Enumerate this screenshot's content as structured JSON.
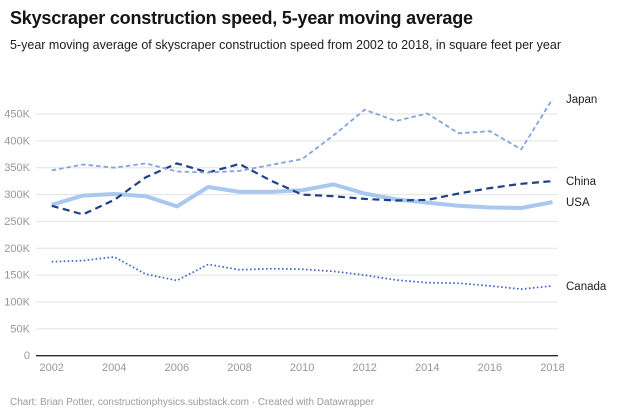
{
  "header": {
    "title": "Skyscraper construction speed, 5-year moving average",
    "subtitle": "5-year moving average of skyscraper construction speed from 2002 to 2018, in square feet per year"
  },
  "footer": {
    "text": "Chart: Brian Potter, constructionphysics.substack.com · Created with Datawrapper"
  },
  "chart_data": {
    "type": "line",
    "title": "Skyscraper construction speed, 5-year moving average",
    "subtitle": "5-year moving average of skyscraper construction speed from 2002 to 2018, in square feet per year",
    "unit": "square feet per year",
    "x": [
      2002,
      2003,
      2004,
      2005,
      2006,
      2007,
      2008,
      2009,
      2010,
      2011,
      2012,
      2013,
      2014,
      2015,
      2016,
      2017,
      2018
    ],
    "x_ticks": [
      "2002",
      "2004",
      "2006",
      "2008",
      "2010",
      "2012",
      "2014",
      "2016",
      "2018"
    ],
    "y_ticks": [
      {
        "value": 0,
        "label": "0"
      },
      {
        "value": 50000,
        "label": "50K"
      },
      {
        "value": 100000,
        "label": "100K"
      },
      {
        "value": 150000,
        "label": "150K"
      },
      {
        "value": 200000,
        "label": "200K"
      },
      {
        "value": 250000,
        "label": "250K"
      },
      {
        "value": 300000,
        "label": "300K"
      },
      {
        "value": 350000,
        "label": "350K"
      },
      {
        "value": 400000,
        "label": "400K"
      },
      {
        "value": 450000,
        "label": "450K"
      }
    ],
    "x_range": [
      2002,
      2018
    ],
    "y_range": [
      0,
      490000
    ],
    "grid": true,
    "legend_position": "end-of-line-labels-right",
    "series": [
      {
        "name": "Japan",
        "color": "#85a3e0",
        "line_style": "dashed",
        "dash": "4.5,3",
        "width": 1.8,
        "values": [
          345000,
          356000,
          350000,
          358000,
          343000,
          341000,
          344000,
          355000,
          366000,
          410000,
          458000,
          437000,
          451000,
          414000,
          418000,
          384000,
          478000
        ]
      },
      {
        "name": "China",
        "color": "#1d4088",
        "line_style": "long-dashed",
        "dash": "7,4.5",
        "width": 2.2,
        "values": [
          279000,
          263000,
          290000,
          332000,
          358000,
          341000,
          357000,
          326000,
          300000,
          297000,
          292000,
          289000,
          290000,
          302000,
          312000,
          320000,
          325000
        ]
      },
      {
        "name": "USA",
        "color": "#a9c8f0",
        "line_style": "solid",
        "dash": "",
        "width": 4,
        "values": [
          281000,
          298000,
          301000,
          297000,
          278000,
          314000,
          305000,
          305000,
          308000,
          319000,
          302000,
          291000,
          285000,
          279000,
          276000,
          275000,
          286000
        ]
      },
      {
        "name": "Canada",
        "color": "#3b64c8",
        "line_style": "dotted",
        "dash": "1.6,2.4",
        "width": 1.7,
        "values": [
          175000,
          177000,
          184000,
          152000,
          140000,
          170000,
          160000,
          162000,
          161000,
          157000,
          150000,
          141000,
          136000,
          135000,
          130000,
          124000,
          130000
        ]
      }
    ],
    "colors": {
      "grid": "#e3e3e3",
      "zero_axis": "#2b2b2b",
      "tick_label": "#979797",
      "series_label": "#1f1f1f"
    }
  }
}
